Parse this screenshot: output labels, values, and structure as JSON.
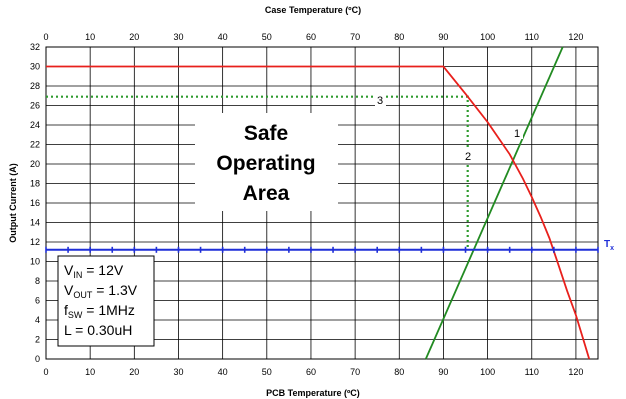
{
  "chart_data": {
    "type": "line",
    "title_top": "Case Temperature (ºC)",
    "xlabel": "PCB Temperature (ºC)",
    "ylabel": "Output Current (A)",
    "xlim": [
      0,
      125
    ],
    "ylim": [
      0,
      32
    ],
    "xticks": [
      0,
      10,
      20,
      30,
      40,
      50,
      60,
      70,
      80,
      90,
      100,
      110,
      120
    ],
    "yticks": [
      0,
      2,
      4,
      6,
      8,
      10,
      12,
      14,
      16,
      18,
      20,
      22,
      24,
      26,
      28,
      30,
      32
    ],
    "grid": true,
    "series": [
      {
        "color": "#e8201c",
        "points": [
          [
            0,
            30
          ],
          [
            90,
            30
          ],
          [
            95,
            27.2
          ],
          [
            100,
            24.3
          ],
          [
            105,
            21
          ],
          [
            108,
            18.5
          ],
          [
            110,
            16.6
          ],
          [
            112,
            14.6
          ],
          [
            114,
            12.4
          ],
          [
            116,
            9.7
          ],
          [
            118,
            7
          ],
          [
            120,
            4.5
          ],
          [
            122,
            1.5
          ],
          [
            123,
            0
          ]
        ]
      },
      {
        "color": "#228b22",
        "points": [
          [
            86,
            0
          ],
          [
            117,
            32
          ]
        ]
      },
      {
        "color": "#1f2fd8",
        "marker": "plus",
        "y": 11.2,
        "points_x": [
          0,
          5,
          10,
          15,
          20,
          25,
          30,
          35,
          40,
          45,
          50,
          55,
          60,
          65,
          70,
          75,
          80,
          85,
          90,
          95,
          100,
          105,
          110,
          115,
          120,
          125
        ]
      },
      {
        "color": "#2e9b2e",
        "style": "dotted",
        "points": [
          [
            0,
            26.9
          ],
          [
            95.5,
            26.9
          ],
          [
            95.5,
            11.2
          ]
        ]
      }
    ],
    "annotations": {
      "safe_area": [
        "Safe",
        "Operating",
        "Area"
      ],
      "marker1": "1",
      "marker2": "2",
      "marker3": "3",
      "tx_label": "T",
      "tx_sub": "x"
    },
    "conditions": [
      {
        "main": "V",
        "sub": "IN",
        "rest": " = 12V"
      },
      {
        "main": "V",
        "sub": "OUT",
        "rest": " = 1.3V"
      },
      {
        "main": "f",
        "sub": "SW",
        "rest": " = 1MHz"
      },
      {
        "main": "L = 0.30uH",
        "sub": "",
        "rest": ""
      }
    ]
  }
}
